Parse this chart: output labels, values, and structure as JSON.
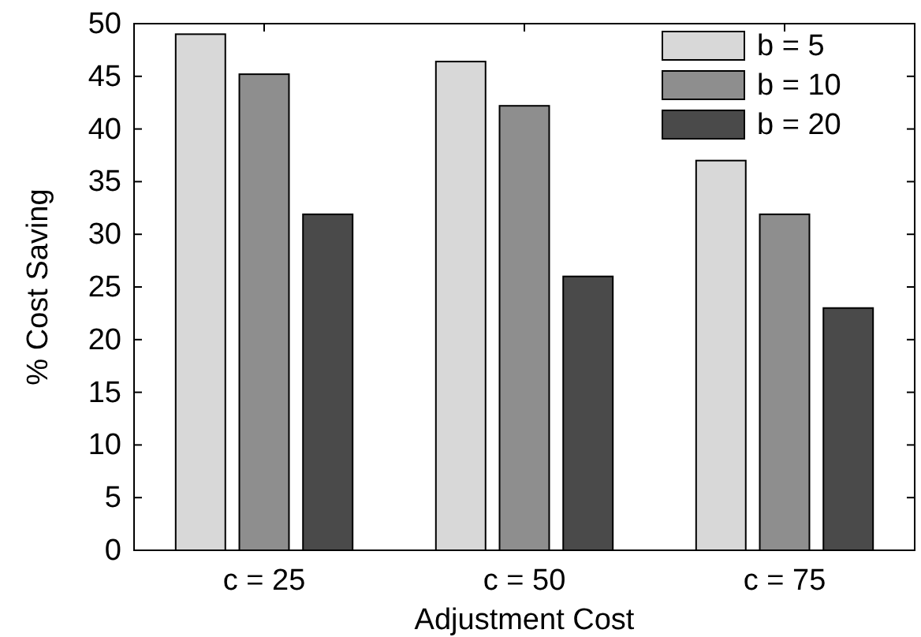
{
  "chart_data": {
    "type": "bar",
    "xlabel": "Adjustment Cost",
    "ylabel": "% Cost Saving",
    "categories": [
      "c = 25",
      "c = 50",
      "c = 75"
    ],
    "series": [
      {
        "name": "b = 5",
        "color": "#d8d8d8",
        "values": [
          49,
          46.4,
          37
        ]
      },
      {
        "name": "b = 10",
        "color": "#8e8e8e",
        "values": [
          45.2,
          42.2,
          31.9
        ]
      },
      {
        "name": "b = 20",
        "color": "#4a4a4a",
        "values": [
          31.9,
          26,
          23
        ]
      }
    ],
    "ylim": [
      0,
      50
    ],
    "yticks": [
      0,
      5,
      10,
      15,
      20,
      25,
      30,
      35,
      40,
      45,
      50
    ],
    "grid": false,
    "legend": "top right"
  }
}
